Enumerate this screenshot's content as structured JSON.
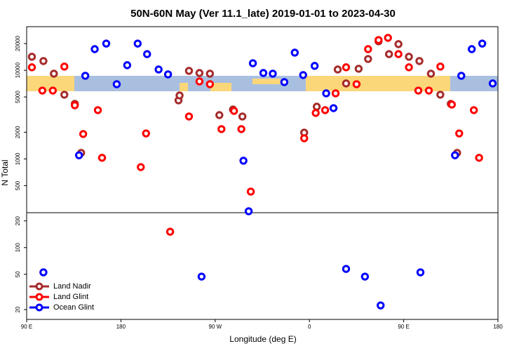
{
  "chart_data": {
    "type": "scatter",
    "title": "50N-60N May (Ver 11.1_late)   2019-01-01 to 2023-04-30",
    "x_label": "Longitude (deg E)",
    "y_label": "N Total",
    "ylog": true,
    "xlim": [
      90,
      540
    ],
    "xticks": [
      {
        "value": 90,
        "label": "90 E"
      },
      {
        "value": 180,
        "label": "180"
      },
      {
        "value": 270,
        "label": "90 W"
      },
      {
        "value": 360,
        "label": "0"
      },
      {
        "value": 450,
        "label": "90 E"
      },
      {
        "value": 540,
        "label": "180"
      }
    ],
    "ylim": [
      15.5,
      31000
    ],
    "yticks": [
      20,
      50,
      100,
      200,
      500,
      1000,
      2000,
      5000,
      10000,
      20000
    ],
    "legend": "bottom-left",
    "series": [
      {
        "name": "Land Nadir",
        "color": "#a52a2a",
        "x": [
          95,
          106,
          116,
          126,
          136,
          142,
          235,
          236,
          245,
          255,
          265,
          274,
          287,
          296,
          355,
          367,
          387,
          395,
          407,
          416,
          426,
          436,
          445,
          455,
          465,
          476,
          485,
          495,
          501
        ],
        "values": [
          14200,
          12700,
          9150,
          5300,
          4180,
          1170,
          4580,
          5200,
          9840,
          9310,
          9150,
          3120,
          3610,
          3010,
          1980,
          3880,
          10200,
          7100,
          10400,
          13400,
          21200,
          15200,
          19700,
          14200,
          12700,
          9150,
          5300,
          4180,
          1170
        ]
      },
      {
        "name": "Land Glint",
        "color": "#ff0000",
        "x": [
          95,
          105,
          115,
          126,
          136,
          144,
          158,
          162,
          199,
          204,
          227,
          245,
          255,
          265,
          276,
          288,
          295,
          304,
          355,
          366,
          375,
          385,
          395,
          405,
          416,
          426,
          435,
          445,
          455,
          464,
          474,
          485,
          496,
          503,
          517,
          522
        ],
        "values": [
          10800,
          5900,
          5900,
          11000,
          4030,
          1910,
          3550,
          1030,
          809,
          1940,
          151,
          3010,
          7480,
          6960,
          2170,
          3480,
          2170,
          428,
          1710,
          3300,
          3550,
          5490,
          10800,
          6960,
          17300,
          21900,
          23200,
          15200,
          10800,
          5900,
          5900,
          11000,
          4100,
          1940,
          3550,
          1030
        ]
      },
      {
        "name": "Ocean Glint",
        "color": "#0000ff",
        "x": [
          106,
          140,
          146,
          155,
          166,
          176,
          186,
          196,
          205,
          216,
          225,
          257,
          297,
          302,
          306,
          316,
          325,
          336,
          346,
          354,
          365,
          376,
          383,
          395,
          413,
          428,
          466,
          499,
          505,
          515,
          525,
          535
        ],
        "values": [
          52.6,
          1100,
          8660,
          17300,
          20000,
          6960,
          11400,
          20000,
          15200,
          10200,
          8990,
          47.1,
          955,
          257,
          12000,
          9310,
          9150,
          7350,
          15800,
          8830,
          11200,
          5490,
          3740,
          57.5,
          47.1,
          22.3,
          52.6,
          1100,
          8660,
          17300,
          20000,
          7100
        ]
      }
    ]
  }
}
